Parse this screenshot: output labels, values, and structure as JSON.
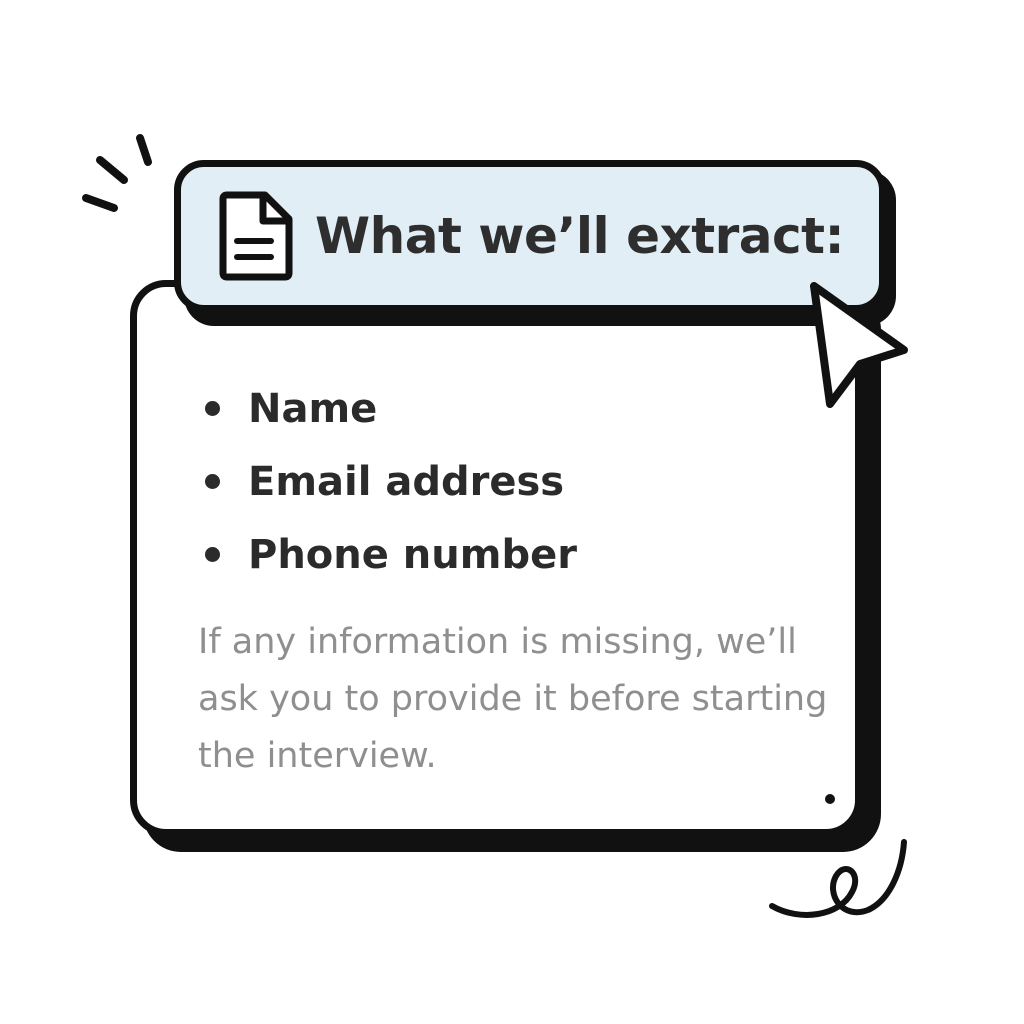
{
  "header": {
    "title": "What we’ll extract:",
    "icon": "document-icon",
    "background_color": "#e1eef6"
  },
  "items": [
    {
      "label": "Name"
    },
    {
      "label": "Email address"
    },
    {
      "label": "Phone number"
    }
  ],
  "note": {
    "text": "If any information is missing, we’ll ask you to provide it before starting the interview."
  },
  "decorations": {
    "cursor_icon": "pointer-cursor-icon",
    "spark_icon": "sparkle-lines-icon",
    "swirl_icon": "swirl-icon"
  },
  "colors": {
    "outline": "#111111",
    "text_dark": "#2b2b2b",
    "text_muted": "#8f8f8f",
    "header_fill": "#e1eef6"
  }
}
